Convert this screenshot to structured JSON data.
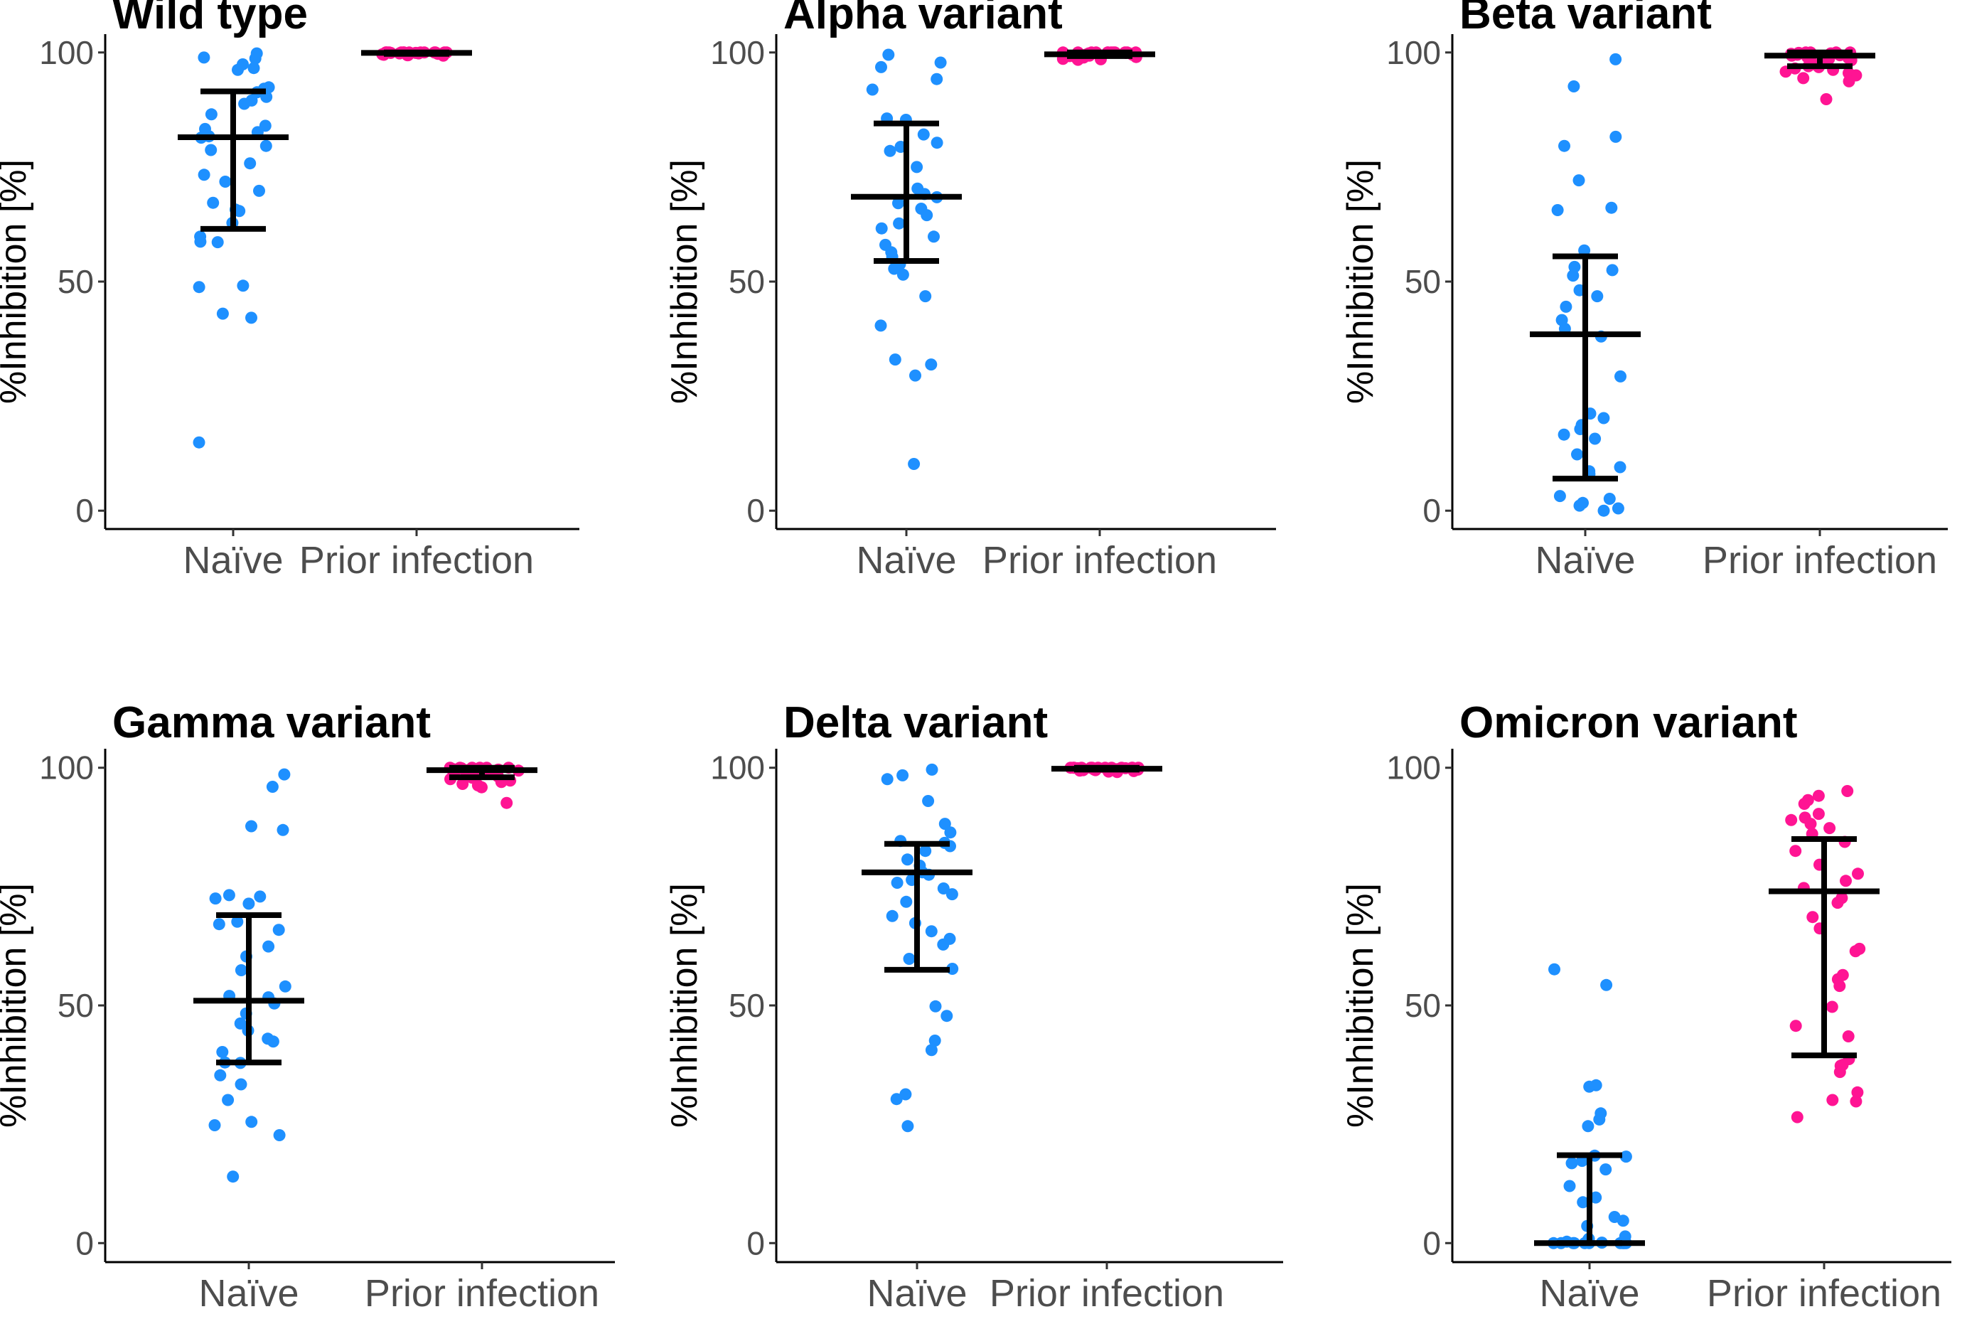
{
  "colors": {
    "naive": "#1e90ff",
    "prior": "#ff1493",
    "bars": "#000000"
  },
  "chart_data": [
    {
      "type": "scatter",
      "title": "Wild type",
      "ylabel": "%Inhibition [%]",
      "xlabel": "",
      "categories": [
        "Naïve",
        "Prior infection"
      ],
      "ylim": [
        -4,
        104
      ],
      "yticks": [
        "0",
        "50",
        "100"
      ],
      "series": [
        {
          "name": "Naïve",
          "median": 81.5,
          "q1": 61.5,
          "q3": 91.5,
          "values": [
            99.8,
            98.9,
            98.7,
            97.4,
            96.6,
            96.2,
            92.4,
            92.1,
            91.3,
            90.3,
            89.5,
            88.8,
            86.5,
            84.0,
            83.3,
            82.6,
            81.7,
            81.4,
            79.6,
            78.7,
            75.8,
            73.3,
            71.8,
            69.8,
            67.2,
            65.7,
            65.4,
            62.8,
            59.8,
            58.7,
            58.6,
            49.1,
            48.8,
            43.0,
            42.1,
            14.9
          ]
        },
        {
          "name": "Prior infection",
          "median": 99.9,
          "q1": 99.7,
          "q3": 100.0,
          "values": [
            100,
            100,
            100,
            100,
            100,
            100,
            100,
            100,
            100,
            100,
            100,
            100,
            100,
            100,
            99.9,
            99.9,
            99.9,
            99.8,
            99.8,
            99.7,
            99.7,
            99.6,
            99.6,
            99.5,
            99.5,
            99.4,
            99.4,
            99.3
          ]
        }
      ]
    },
    {
      "type": "scatter",
      "title": "Alpha variant",
      "ylabel": "%Inhibition [%]",
      "xlabel": "",
      "categories": [
        "Naïve",
        "Prior infection"
      ],
      "ylim": [
        -4,
        104
      ],
      "yticks": [
        "0",
        "50",
        "100"
      ],
      "series": [
        {
          "name": "Naïve",
          "median": 68.5,
          "q1": 54.5,
          "q3": 84.5,
          "values": [
            99.5,
            97.8,
            96.8,
            94.2,
            91.9,
            85.6,
            85.3,
            82.1,
            80.3,
            79.4,
            78.5,
            75.0,
            70.3,
            69.1,
            68.4,
            67.1,
            65.9,
            64.5,
            62.7,
            61.6,
            59.8,
            58.0,
            56.4,
            55.4,
            53.8,
            52.8,
            51.5,
            46.8,
            40.4,
            33.0,
            31.9,
            29.5,
            10.2
          ]
        },
        {
          "name": "Prior infection",
          "median": 99.6,
          "q1": 99.2,
          "q3": 100.0,
          "values": [
            100,
            100,
            100,
            100,
            100,
            100,
            100,
            100,
            100,
            100,
            100,
            100,
            99.9,
            99.9,
            99.8,
            99.8,
            99.7,
            99.6,
            99.5,
            99.4,
            99.3,
            99.2,
            99.0,
            98.9,
            98.8,
            98.6,
            98.5,
            98.4
          ]
        }
      ]
    },
    {
      "type": "scatter",
      "title": "Beta variant",
      "ylabel": "%Inhibition [%]",
      "xlabel": "",
      "categories": [
        "Naïve",
        "Prior infection"
      ],
      "ylim": [
        -4,
        104
      ],
      "yticks": [
        "0",
        "50",
        "100"
      ],
      "series": [
        {
          "name": "Naïve",
          "median": 38.5,
          "q1": 7.0,
          "q3": 55.5,
          "values": [
            98.5,
            92.6,
            81.6,
            79.6,
            72.1,
            66.1,
            65.6,
            56.8,
            53.2,
            52.5,
            51.3,
            48.1,
            46.8,
            44.5,
            41.6,
            39.7,
            38.0,
            29.3,
            21.2,
            20.2,
            18.7,
            17.8,
            16.6,
            15.7,
            12.3,
            9.5,
            8.6,
            8.0,
            3.2,
            2.6,
            1.7,
            1.1,
            0.5,
            0.0
          ]
        },
        {
          "name": "Prior infection",
          "median": 99.3,
          "q1": 97.0,
          "q3": 100.0,
          "values": [
            100,
            100,
            100,
            100,
            99.9,
            99.8,
            99.7,
            99.5,
            99.4,
            99.3,
            99.2,
            99.0,
            98.8,
            98.6,
            98.3,
            98.0,
            97.7,
            97.4,
            97.0,
            96.8,
            96.5,
            96.2,
            95.8,
            95.5,
            95.0,
            94.4,
            93.7,
            89.8
          ]
        }
      ]
    },
    {
      "type": "scatter",
      "title": "Gamma variant",
      "ylabel": "%Inhibition [%]",
      "xlabel": "",
      "categories": [
        "Naïve",
        "Prior infection"
      ],
      "ylim": [
        -4,
        104
      ],
      "yticks": [
        "0",
        "50",
        "100"
      ],
      "series": [
        {
          "name": "Naïve",
          "median": 51.0,
          "q1": 38.0,
          "q3": 69.0,
          "values": [
            98.6,
            96.0,
            87.7,
            86.9,
            73.2,
            72.9,
            72.5,
            71.4,
            67.6,
            67.1,
            65.9,
            62.4,
            60.3,
            57.4,
            54.0,
            52.0,
            51.7,
            50.4,
            48.3,
            46.2,
            44.7,
            43.0,
            42.4,
            40.2,
            38.0,
            37.9,
            35.3,
            33.4,
            30.1,
            25.5,
            24.8,
            22.7,
            14.0
          ]
        },
        {
          "name": "Prior infection",
          "median": 99.5,
          "q1": 98.0,
          "q3": 100.0,
          "values": [
            100,
            100,
            100,
            100,
            100,
            100,
            99.9,
            99.8,
            99.7,
            99.6,
            99.5,
            99.4,
            99.3,
            99.1,
            99.0,
            98.8,
            98.6,
            98.4,
            98.2,
            97.9,
            97.6,
            97.3,
            97.0,
            96.6,
            96.3,
            95.9,
            92.6
          ]
        }
      ]
    },
    {
      "type": "scatter",
      "title": "Delta variant",
      "ylabel": "%Inhibition [%]",
      "xlabel": "",
      "categories": [
        "Naïve",
        "Prior infection"
      ],
      "ylim": [
        -4,
        104
      ],
      "yticks": [
        "0",
        "50",
        "100"
      ],
      "series": [
        {
          "name": "Naïve",
          "median": 78.0,
          "q1": 57.5,
          "q3": 84.0,
          "values": [
            99.6,
            98.4,
            97.6,
            93.0,
            88.2,
            86.4,
            84.6,
            84.2,
            83.5,
            82.5,
            80.7,
            79.4,
            78.0,
            77.5,
            76.4,
            75.8,
            74.6,
            73.4,
            71.8,
            68.8,
            67.3,
            65.6,
            64.0,
            62.8,
            59.8,
            57.7,
            49.8,
            47.8,
            42.6,
            40.6,
            31.3,
            30.3,
            24.6
          ]
        },
        {
          "name": "Prior infection",
          "median": 99.8,
          "q1": 99.6,
          "q3": 100.0,
          "values": [
            100,
            100,
            100,
            100,
            100,
            100,
            100,
            100,
            100,
            100,
            100,
            100,
            100,
            99.9,
            99.9,
            99.9,
            99.8,
            99.8,
            99.7,
            99.7,
            99.6,
            99.6,
            99.5,
            99.5,
            99.4,
            99.3,
            99.2,
            99.1
          ]
        }
      ]
    },
    {
      "type": "scatter",
      "title": "Omicron variant",
      "ylabel": "%Inhibition [%]",
      "xlabel": "",
      "categories": [
        "Naïve",
        "Prior infection"
      ],
      "ylim": [
        -4,
        104
      ],
      "yticks": [
        "0",
        "50",
        "100"
      ],
      "series": [
        {
          "name": "Naïve",
          "median": 0.0,
          "q1": 0.0,
          "q3": 18.5,
          "values": [
            57.6,
            54.3,
            33.2,
            32.9,
            27.3,
            26.0,
            24.6,
            18.4,
            18.2,
            17.3,
            16.8,
            15.5,
            12.0,
            9.6,
            8.6,
            5.5,
            4.7,
            3.6,
            1.4,
            0.9,
            0.6,
            0.3,
            0.1,
            0,
            0,
            0,
            0,
            0,
            0,
            0,
            0,
            0,
            0
          ]
        },
        {
          "name": "Prior infection",
          "median": 74.0,
          "q1": 39.5,
          "q3": 85.0,
          "values": [
            95.1,
            94.1,
            93.2,
            92.4,
            90.3,
            89.5,
            89.0,
            88.2,
            87.3,
            86.1,
            84.4,
            82.5,
            79.6,
            77.7,
            76.2,
            74.7,
            72.6,
            71.6,
            68.6,
            66.2,
            61.9,
            61.4,
            56.4,
            55.5,
            54.1,
            49.7,
            45.7,
            43.5,
            38.7,
            37.5,
            37.3,
            36.0,
            31.7,
            30.1,
            29.8,
            26.5
          ]
        }
      ]
    }
  ]
}
